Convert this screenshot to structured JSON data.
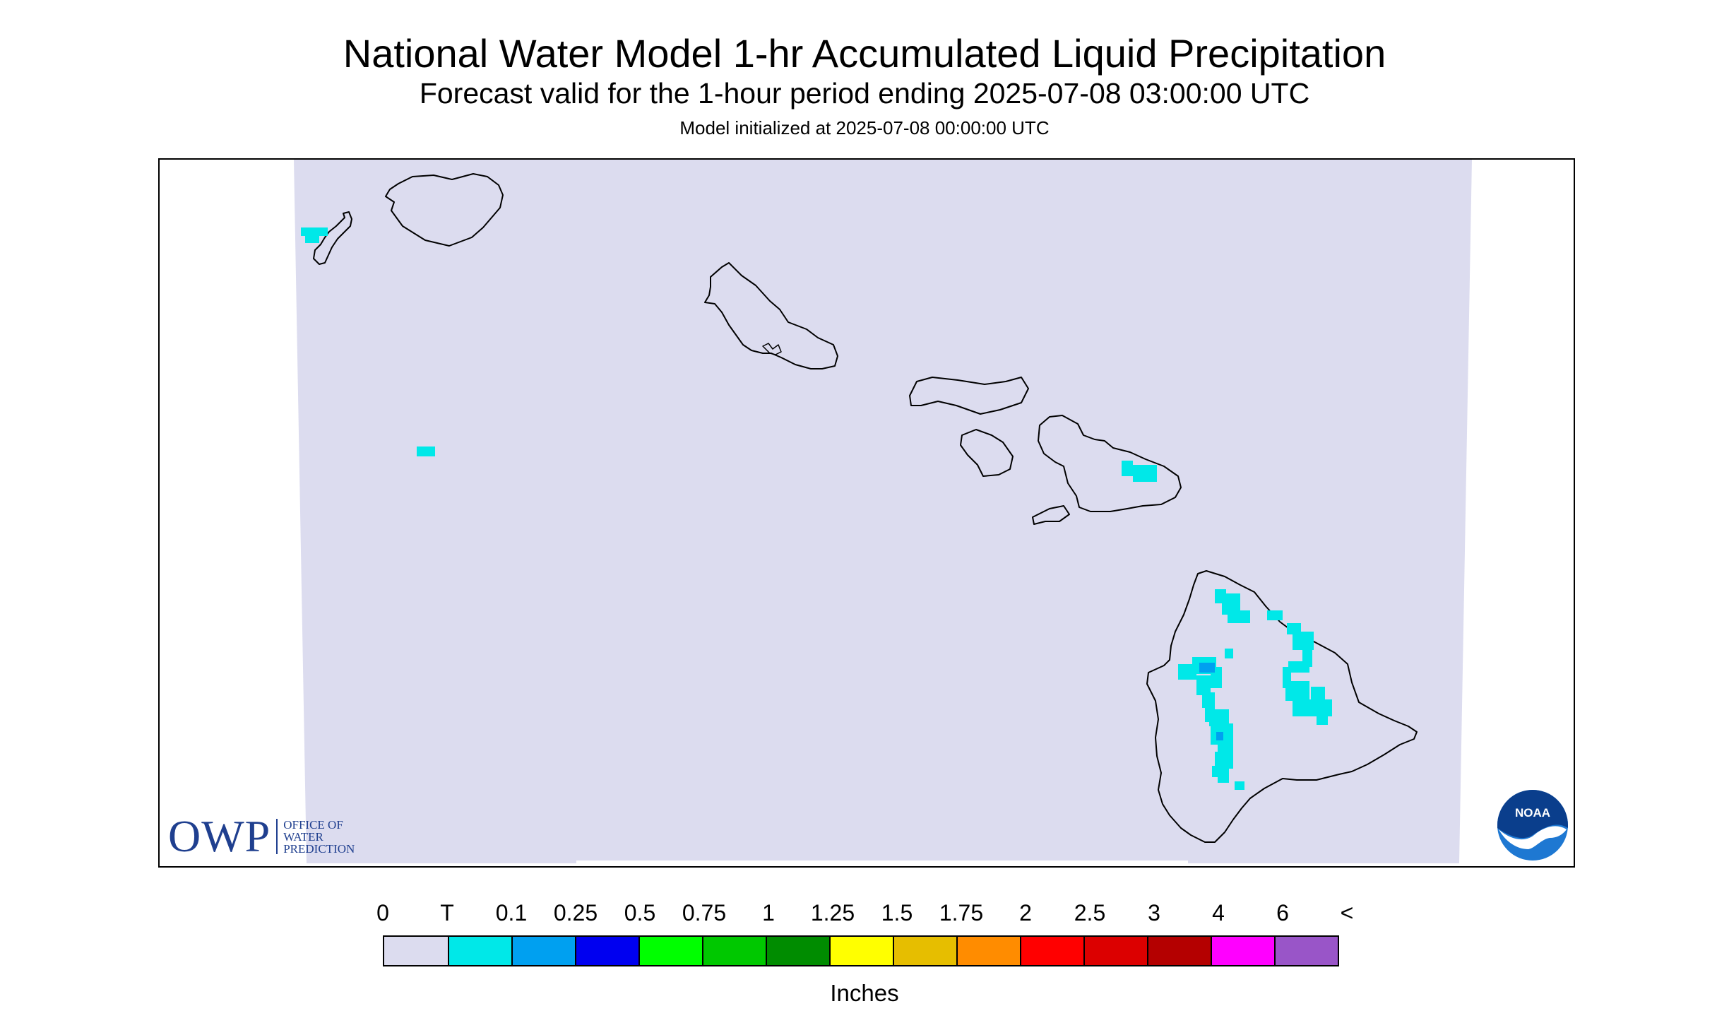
{
  "header": {
    "title": "National Water Model 1-hr Accumulated Liquid Precipitation",
    "subtitle": "Forecast valid for the 1-hour period ending 2025-07-08 03:00:00 UTC",
    "initialized": "Model initialized at 2025-07-08 00:00:00 UTC"
  },
  "map": {
    "region": "Hawaiian Islands",
    "background_color": "#dcdcef",
    "coastline_color": "#000000"
  },
  "legend": {
    "units": "Inches",
    "labels": [
      "0",
      "T",
      "0.1",
      "0.25",
      "0.5",
      "0.75",
      "1",
      "1.25",
      "1.5",
      "1.75",
      "2",
      "2.5",
      "3",
      "4",
      "6",
      "<"
    ],
    "colors": [
      "#dcdcef",
      "#00e8e8",
      "#00a0f0",
      "#0000f0",
      "#00ff00",
      "#00c800",
      "#008c00",
      "#ffff00",
      "#e6be00",
      "#ff8c00",
      "#ff0000",
      "#dc0000",
      "#b40000",
      "#ff00ff",
      "#9955c8"
    ]
  },
  "logos": {
    "owp": {
      "abbr": "OWP",
      "line1": "OFFICE OF",
      "line2": "WATER",
      "line3": "PREDICTION",
      "color": "#1f3f8f"
    },
    "noaa": {
      "text": "NOAA",
      "colors": [
        "#0a3e8c",
        "#1e78d2",
        "#ffffff"
      ]
    }
  }
}
